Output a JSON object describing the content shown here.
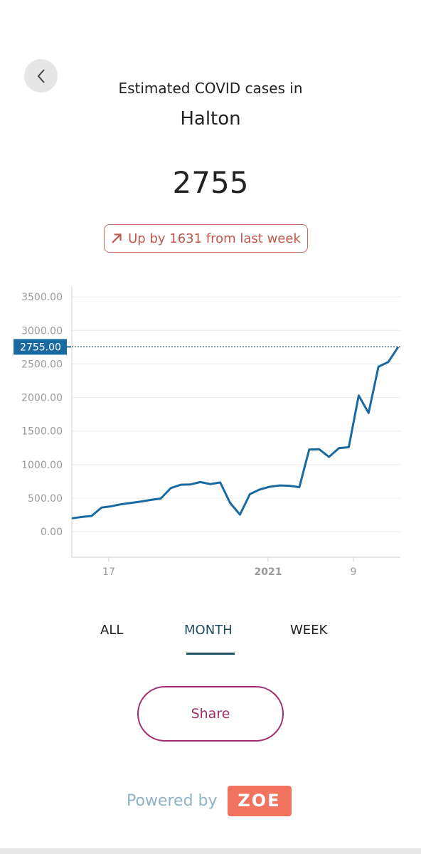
{
  "header": {
    "back_icon": "chevron-left-icon",
    "subtitle": "Estimated COVID cases in",
    "region": "Halton"
  },
  "summary": {
    "value": "2755",
    "trend_icon": "arrow-up-right-icon",
    "trend_text": "Up by 1631 from last week",
    "trend_color": "#c0584c"
  },
  "chart_data": {
    "type": "line",
    "y_ticks": [
      "3500.00",
      "3000.00",
      "2500.00",
      "2000.00",
      "1500.00",
      "1000.00",
      "500.00",
      "0.00"
    ],
    "x_ticks": [
      "17",
      "2021",
      "9"
    ],
    "ylim": [
      -380,
      3650
    ],
    "current_label": "2755.00",
    "current_value": 2755,
    "line_color": "#1a6aa2",
    "values": [
      200,
      220,
      235,
      360,
      380,
      410,
      430,
      450,
      475,
      495,
      650,
      700,
      705,
      740,
      710,
      735,
      430,
      255,
      560,
      630,
      670,
      690,
      685,
      665,
      1225,
      1230,
      1115,
      1245,
      1260,
      2030,
      1770,
      2460,
      2530,
      2755
    ],
    "grid": true
  },
  "tabs": [
    {
      "label": "ALL",
      "active": false
    },
    {
      "label": "MONTH",
      "active": true
    },
    {
      "label": "WEEK",
      "active": false
    }
  ],
  "share_label": "Share",
  "footer": {
    "powered_text": "Powered by",
    "brand": "ZOE",
    "brand_color": "#f0735f"
  }
}
